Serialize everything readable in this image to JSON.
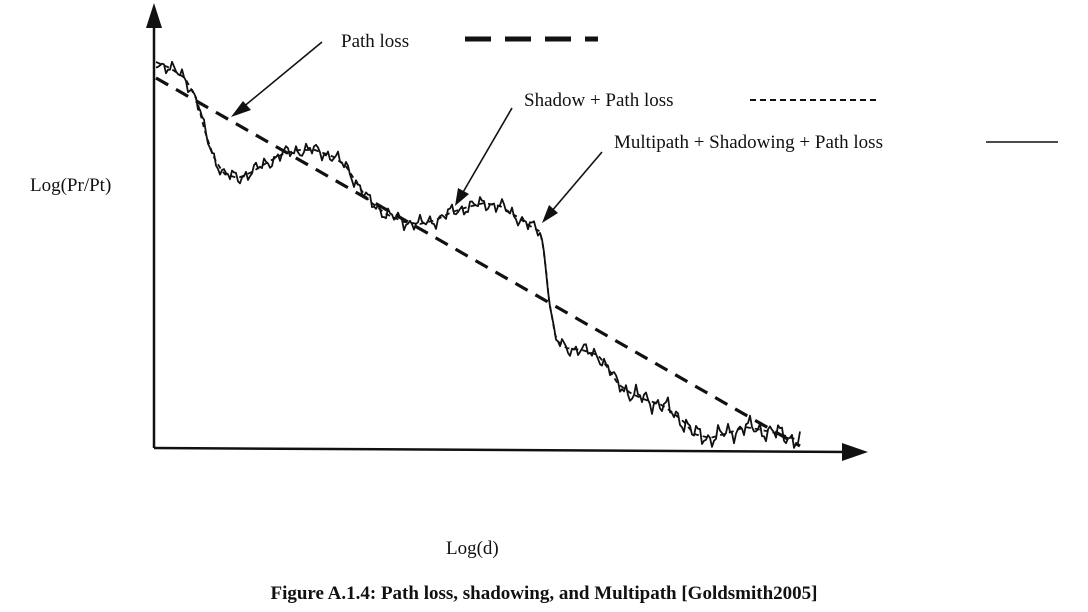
{
  "chart_data": {
    "type": "line",
    "title": "",
    "xlabel": "Log(d)",
    "ylabel": "Log(Pr/Pt)",
    "caption": "Figure A.1.4: Path loss, shadowing, and Multipath [Goldsmith2005]",
    "grid": false,
    "legend": "inline labels with arrows",
    "series": [
      {
        "name": "Path loss",
        "style": "long-dash"
      },
      {
        "name": "Shadow + Path loss",
        "style": "short-dash"
      },
      {
        "name": "Multipath + Shadowing + Path loss",
        "style": "solid"
      }
    ]
  }
}
